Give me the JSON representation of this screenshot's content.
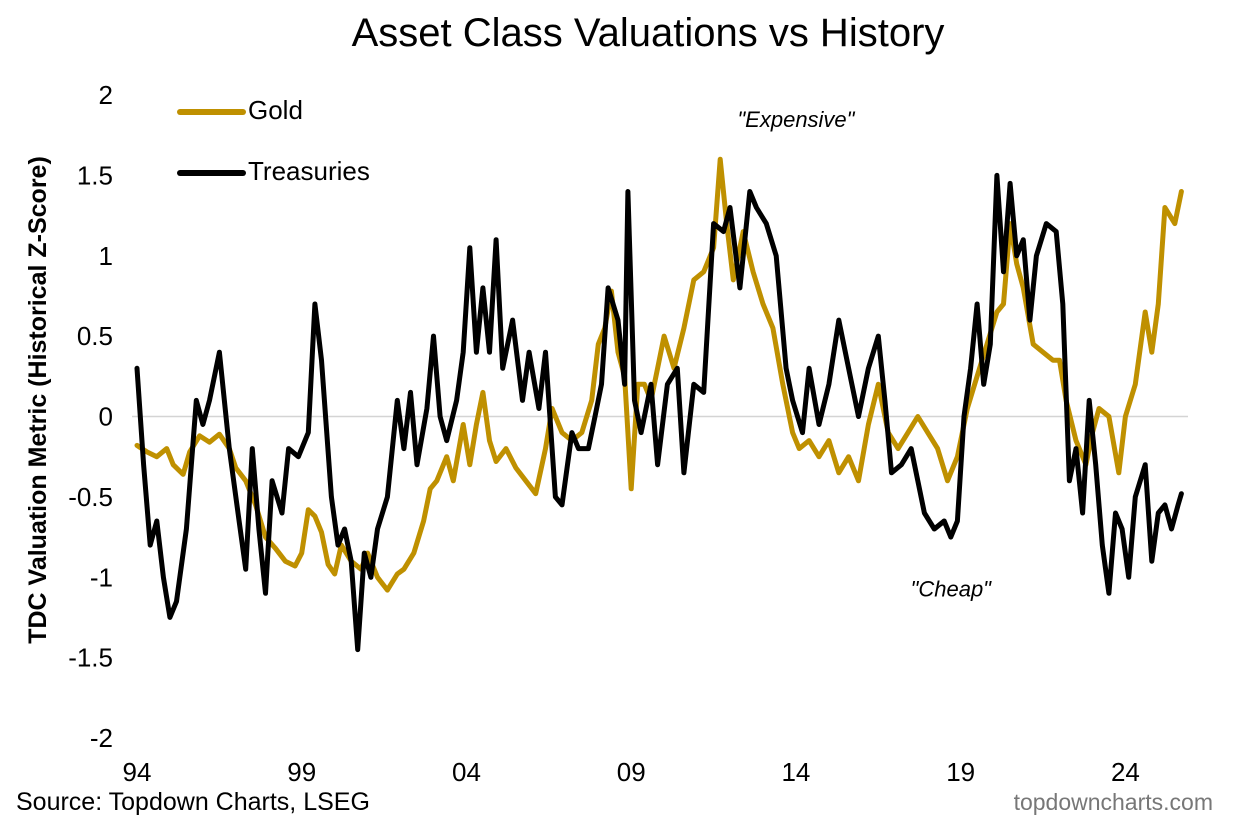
{
  "chart_data": {
    "type": "line",
    "title": "Asset Class Valuations vs History",
    "ylabel": "TDC Valuation Metric (Historical Z-Score)",
    "xlabel": "",
    "xlim": [
      1994.0,
      2025.9
    ],
    "ylim": [
      -2,
      2
    ],
    "y_ticks": [
      2,
      1.5,
      1,
      0.5,
      0,
      -0.5,
      -1,
      -1.5,
      -2
    ],
    "y_tick_labels": [
      "2",
      "1.5",
      "1",
      "0.5",
      "0",
      "-0.5",
      "-1",
      "-1.5",
      "-2"
    ],
    "x_ticks": [
      1994,
      1999,
      2004,
      2009,
      2014,
      2019,
      2024
    ],
    "x_tick_labels": [
      "94",
      "99",
      "04",
      "09",
      "14",
      "19",
      "24"
    ],
    "zero_line": true,
    "grid": false,
    "legend_position": "top-left",
    "annotations": [
      {
        "text": "\"Expensive\"",
        "x": 2014.0,
        "y": 1.8
      },
      {
        "text": "\"Cheap\"",
        "x": 2018.7,
        "y": -1.12
      }
    ],
    "series": [
      {
        "name": "Gold",
        "color": "#BF9000",
        "points": [
          [
            1994.0,
            -0.18
          ],
          [
            1994.3,
            -0.22
          ],
          [
            1994.6,
            -0.25
          ],
          [
            1994.9,
            -0.2
          ],
          [
            1995.1,
            -0.3
          ],
          [
            1995.4,
            -0.36
          ],
          [
            1995.6,
            -0.22
          ],
          [
            1995.9,
            -0.12
          ],
          [
            1996.2,
            -0.16
          ],
          [
            1996.5,
            -0.11
          ],
          [
            1996.8,
            -0.2
          ],
          [
            1997.0,
            -0.32
          ],
          [
            1997.3,
            -0.4
          ],
          [
            1997.6,
            -0.55
          ],
          [
            1997.9,
            -0.75
          ],
          [
            1998.2,
            -0.82
          ],
          [
            1998.5,
            -0.9
          ],
          [
            1998.8,
            -0.93
          ],
          [
            1999.0,
            -0.85
          ],
          [
            1999.2,
            -0.58
          ],
          [
            1999.4,
            -0.62
          ],
          [
            1999.6,
            -0.72
          ],
          [
            1999.8,
            -0.92
          ],
          [
            2000.0,
            -0.98
          ],
          [
            2000.2,
            -0.8
          ],
          [
            2000.5,
            -0.9
          ],
          [
            2000.8,
            -0.95
          ],
          [
            2001.0,
            -0.85
          ],
          [
            2001.3,
            -1.0
          ],
          [
            2001.6,
            -1.08
          ],
          [
            2001.9,
            -0.98
          ],
          [
            2002.1,
            -0.95
          ],
          [
            2002.4,
            -0.85
          ],
          [
            2002.7,
            -0.65
          ],
          [
            2002.9,
            -0.45
          ],
          [
            2003.1,
            -0.4
          ],
          [
            2003.4,
            -0.25
          ],
          [
            2003.6,
            -0.4
          ],
          [
            2003.9,
            -0.05
          ],
          [
            2004.1,
            -0.3
          ],
          [
            2004.3,
            -0.05
          ],
          [
            2004.5,
            0.15
          ],
          [
            2004.7,
            -0.15
          ],
          [
            2004.9,
            -0.28
          ],
          [
            2005.2,
            -0.2
          ],
          [
            2005.5,
            -0.32
          ],
          [
            2005.8,
            -0.4
          ],
          [
            2006.1,
            -0.48
          ],
          [
            2006.4,
            -0.2
          ],
          [
            2006.6,
            0.05
          ],
          [
            2006.9,
            -0.1
          ],
          [
            2007.2,
            -0.15
          ],
          [
            2007.5,
            -0.1
          ],
          [
            2007.8,
            0.1
          ],
          [
            2008.0,
            0.45
          ],
          [
            2008.2,
            0.55
          ],
          [
            2008.4,
            0.78
          ],
          [
            2008.6,
            0.4
          ],
          [
            2008.8,
            0.25
          ],
          [
            2009.0,
            -0.45
          ],
          [
            2009.2,
            0.2
          ],
          [
            2009.4,
            0.2
          ],
          [
            2009.6,
            0.1
          ],
          [
            2009.8,
            0.3
          ],
          [
            2010.0,
            0.5
          ],
          [
            2010.3,
            0.3
          ],
          [
            2010.6,
            0.55
          ],
          [
            2010.9,
            0.85
          ],
          [
            2011.2,
            0.9
          ],
          [
            2011.5,
            1.05
          ],
          [
            2011.7,
            1.6
          ],
          [
            2011.9,
            1.2
          ],
          [
            2012.1,
            0.85
          ],
          [
            2012.4,
            1.15
          ],
          [
            2012.7,
            0.9
          ],
          [
            2013.0,
            0.7
          ],
          [
            2013.3,
            0.55
          ],
          [
            2013.6,
            0.2
          ],
          [
            2013.9,
            -0.1
          ],
          [
            2014.1,
            -0.2
          ],
          [
            2014.4,
            -0.15
          ],
          [
            2014.7,
            -0.25
          ],
          [
            2015.0,
            -0.15
          ],
          [
            2015.3,
            -0.35
          ],
          [
            2015.6,
            -0.25
          ],
          [
            2015.9,
            -0.4
          ],
          [
            2016.2,
            -0.05
          ],
          [
            2016.5,
            0.2
          ],
          [
            2016.8,
            -0.1
          ],
          [
            2017.1,
            -0.2
          ],
          [
            2017.4,
            -0.1
          ],
          [
            2017.7,
            0.0
          ],
          [
            2018.0,
            -0.1
          ],
          [
            2018.3,
            -0.2
          ],
          [
            2018.6,
            -0.4
          ],
          [
            2018.9,
            -0.25
          ],
          [
            2019.2,
            0.05
          ],
          [
            2019.5,
            0.25
          ],
          [
            2019.8,
            0.45
          ],
          [
            2020.1,
            0.65
          ],
          [
            2020.3,
            0.7
          ],
          [
            2020.5,
            1.2
          ],
          [
            2020.7,
            0.95
          ],
          [
            2020.9,
            0.8
          ],
          [
            2021.2,
            0.45
          ],
          [
            2021.5,
            0.4
          ],
          [
            2021.8,
            0.35
          ],
          [
            2022.0,
            0.35
          ],
          [
            2022.2,
            0.1
          ],
          [
            2022.5,
            -0.15
          ],
          [
            2022.8,
            -0.3
          ],
          [
            2023.0,
            -0.1
          ],
          [
            2023.2,
            0.05
          ],
          [
            2023.5,
            0.0
          ],
          [
            2023.8,
            -0.35
          ],
          [
            2024.0,
            0.0
          ],
          [
            2024.3,
            0.2
          ],
          [
            2024.6,
            0.65
          ],
          [
            2024.8,
            0.4
          ],
          [
            2025.0,
            0.7
          ],
          [
            2025.2,
            1.3
          ],
          [
            2025.5,
            1.2
          ],
          [
            2025.7,
            1.4
          ]
        ]
      },
      {
        "name": "Treasuries",
        "color": "#000000",
        "points": [
          [
            1994.0,
            0.3
          ],
          [
            1994.2,
            -0.3
          ],
          [
            1994.4,
            -0.8
          ],
          [
            1994.6,
            -0.65
          ],
          [
            1994.8,
            -1.0
          ],
          [
            1995.0,
            -1.25
          ],
          [
            1995.2,
            -1.15
          ],
          [
            1995.5,
            -0.7
          ],
          [
            1995.8,
            0.1
          ],
          [
            1996.0,
            -0.05
          ],
          [
            1996.2,
            0.1
          ],
          [
            1996.5,
            0.4
          ],
          [
            1996.8,
            -0.2
          ],
          [
            1997.1,
            -0.65
          ],
          [
            1997.3,
            -0.95
          ],
          [
            1997.5,
            -0.2
          ],
          [
            1997.7,
            -0.7
          ],
          [
            1997.9,
            -1.1
          ],
          [
            1998.1,
            -0.4
          ],
          [
            1998.4,
            -0.6
          ],
          [
            1998.6,
            -0.2
          ],
          [
            1998.9,
            -0.25
          ],
          [
            1999.2,
            -0.1
          ],
          [
            1999.4,
            0.7
          ],
          [
            1999.6,
            0.35
          ],
          [
            1999.9,
            -0.5
          ],
          [
            2000.1,
            -0.8
          ],
          [
            2000.3,
            -0.7
          ],
          [
            2000.5,
            -0.9
          ],
          [
            2000.7,
            -1.45
          ],
          [
            2000.9,
            -0.85
          ],
          [
            2001.1,
            -1.0
          ],
          [
            2001.3,
            -0.7
          ],
          [
            2001.6,
            -0.5
          ],
          [
            2001.9,
            0.1
          ],
          [
            2002.1,
            -0.2
          ],
          [
            2002.3,
            0.15
          ],
          [
            2002.5,
            -0.3
          ],
          [
            2002.8,
            0.05
          ],
          [
            2003.0,
            0.5
          ],
          [
            2003.2,
            0.0
          ],
          [
            2003.4,
            -0.15
          ],
          [
            2003.7,
            0.1
          ],
          [
            2003.9,
            0.4
          ],
          [
            2004.1,
            1.05
          ],
          [
            2004.3,
            0.4
          ],
          [
            2004.5,
            0.8
          ],
          [
            2004.7,
            0.4
          ],
          [
            2004.9,
            1.1
          ],
          [
            2005.1,
            0.3
          ],
          [
            2005.4,
            0.6
          ],
          [
            2005.7,
            0.1
          ],
          [
            2005.9,
            0.4
          ],
          [
            2006.2,
            0.05
          ],
          [
            2006.4,
            0.4
          ],
          [
            2006.7,
            -0.5
          ],
          [
            2006.9,
            -0.55
          ],
          [
            2007.2,
            -0.1
          ],
          [
            2007.4,
            -0.2
          ],
          [
            2007.7,
            -0.2
          ],
          [
            2007.9,
            0.0
          ],
          [
            2008.1,
            0.2
          ],
          [
            2008.3,
            0.8
          ],
          [
            2008.6,
            0.6
          ],
          [
            2008.8,
            0.2
          ],
          [
            2008.9,
            1.4
          ],
          [
            2009.1,
            0.1
          ],
          [
            2009.3,
            -0.1
          ],
          [
            2009.6,
            0.2
          ],
          [
            2009.8,
            -0.3
          ],
          [
            2010.1,
            0.2
          ],
          [
            2010.4,
            0.3
          ],
          [
            2010.6,
            -0.35
          ],
          [
            2010.9,
            0.2
          ],
          [
            2011.2,
            0.15
          ],
          [
            2011.5,
            1.2
          ],
          [
            2011.8,
            1.15
          ],
          [
            2012.0,
            1.3
          ],
          [
            2012.3,
            0.8
          ],
          [
            2012.6,
            1.4
          ],
          [
            2012.8,
            1.3
          ],
          [
            2013.1,
            1.2
          ],
          [
            2013.4,
            1.0
          ],
          [
            2013.7,
            0.3
          ],
          [
            2013.9,
            0.1
          ],
          [
            2014.2,
            -0.1
          ],
          [
            2014.4,
            0.3
          ],
          [
            2014.7,
            -0.05
          ],
          [
            2015.0,
            0.2
          ],
          [
            2015.3,
            0.6
          ],
          [
            2015.6,
            0.3
          ],
          [
            2015.9,
            0.0
          ],
          [
            2016.2,
            0.3
          ],
          [
            2016.5,
            0.5
          ],
          [
            2016.7,
            0.1
          ],
          [
            2016.9,
            -0.35
          ],
          [
            2017.2,
            -0.3
          ],
          [
            2017.5,
            -0.2
          ],
          [
            2017.7,
            -0.4
          ],
          [
            2017.9,
            -0.6
          ],
          [
            2018.2,
            -0.7
          ],
          [
            2018.5,
            -0.65
          ],
          [
            2018.7,
            -0.75
          ],
          [
            2018.9,
            -0.65
          ],
          [
            2019.1,
            0.0
          ],
          [
            2019.3,
            0.3
          ],
          [
            2019.5,
            0.7
          ],
          [
            2019.7,
            0.2
          ],
          [
            2019.9,
            0.45
          ],
          [
            2020.1,
            1.5
          ],
          [
            2020.3,
            0.9
          ],
          [
            2020.5,
            1.45
          ],
          [
            2020.7,
            1.0
          ],
          [
            2020.9,
            1.1
          ],
          [
            2021.1,
            0.6
          ],
          [
            2021.3,
            1.0
          ],
          [
            2021.6,
            1.2
          ],
          [
            2021.9,
            1.15
          ],
          [
            2022.1,
            0.7
          ],
          [
            2022.3,
            -0.4
          ],
          [
            2022.5,
            -0.2
          ],
          [
            2022.7,
            -0.6
          ],
          [
            2022.9,
            0.1
          ],
          [
            2023.1,
            -0.3
          ],
          [
            2023.3,
            -0.8
          ],
          [
            2023.5,
            -1.1
          ],
          [
            2023.7,
            -0.6
          ],
          [
            2023.9,
            -0.7
          ],
          [
            2024.1,
            -1.0
          ],
          [
            2024.3,
            -0.5
          ],
          [
            2024.6,
            -0.3
          ],
          [
            2024.8,
            -0.9
          ],
          [
            2025.0,
            -0.6
          ],
          [
            2025.2,
            -0.55
          ],
          [
            2025.4,
            -0.7
          ],
          [
            2025.6,
            -0.55
          ],
          [
            2025.7,
            -0.48
          ]
        ]
      }
    ]
  },
  "footer": {
    "source": "Source: Topdown Charts, LSEG",
    "watermark": "topdowncharts.com"
  }
}
